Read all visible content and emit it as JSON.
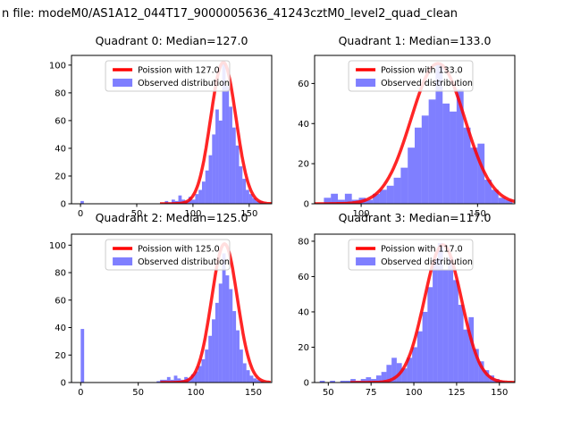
{
  "figure": {
    "title": "n file: modeM0/AS1A12_044T17_9000005636_41243cztM0_level2_quad_clean",
    "colors": {
      "curve": "#ff0000",
      "bars": "rgba(0,0,255,0.5)",
      "axes": "#000000"
    }
  },
  "chart_data": [
    {
      "type": "histogram",
      "title": "Quadrant 0: Median=127.0",
      "legend": [
        "Poission with 127.0",
        "Observed distribution"
      ],
      "poisson": {
        "lambda": 127.0,
        "peak": 102
      },
      "hist": {
        "bin_start": 0,
        "bin_width": 3,
        "counts": [
          2,
          0,
          0,
          0,
          0,
          0,
          0,
          0,
          0,
          0,
          0,
          0,
          0,
          0,
          0,
          0,
          0,
          0,
          0,
          0,
          0,
          0,
          0,
          0,
          0,
          2,
          1,
          3,
          2,
          6,
          3,
          2,
          5,
          3,
          7,
          10,
          16,
          24,
          35,
          50,
          68,
          60,
          101,
          85,
          70,
          55,
          42,
          27,
          18,
          10,
          7,
          4,
          2,
          2,
          1
        ]
      },
      "xticks": [
        0,
        50,
        100,
        150
      ],
      "yticks": [
        0,
        20,
        40,
        60,
        80,
        100
      ],
      "xlim": [
        -8,
        170
      ],
      "ylim": [
        0,
        107
      ]
    },
    {
      "type": "histogram",
      "title": "Quadrant 1: Median=133.0",
      "legend": [
        "Poission with 133.0",
        "Observed distribution"
      ],
      "poisson": {
        "lambda": 133.0,
        "peak": 70
      },
      "hist": {
        "bin_start": 84,
        "bin_width": 3,
        "counts": [
          3,
          5,
          2,
          5,
          2,
          3,
          2,
          5,
          7,
          9,
          13,
          18,
          28,
          38,
          44,
          52,
          70,
          50,
          46,
          57,
          38,
          28,
          30,
          12,
          7,
          3,
          2
        ]
      },
      "xticks": [
        100,
        150
      ],
      "yticks": [
        0,
        20,
        40,
        60
      ],
      "xlim": [
        80,
        166
      ],
      "ylim": [
        0,
        74
      ]
    },
    {
      "type": "histogram",
      "title": "Quadrant 2: Median=125.0",
      "legend": [
        "Poission with 125.0",
        "Observed distribution"
      ],
      "poisson": {
        "lambda": 125.0,
        "peak": 101
      },
      "hist": {
        "bin_start": 0,
        "bin_width": 3,
        "counts": [
          39,
          0,
          0,
          0,
          0,
          0,
          0,
          0,
          0,
          0,
          0,
          0,
          0,
          0,
          0,
          0,
          0,
          0,
          0,
          0,
          0,
          0,
          1,
          2,
          2,
          4,
          2,
          5,
          3,
          2,
          4,
          3,
          6,
          8,
          12,
          17,
          24,
          34,
          46,
          58,
          72,
          94,
          78,
          68,
          52,
          38,
          24,
          14,
          9,
          5,
          3,
          2,
          1
        ]
      },
      "xticks": [
        0,
        50,
        100,
        150
      ],
      "yticks": [
        0,
        20,
        40,
        60,
        80,
        100
      ],
      "xlim": [
        -8,
        166
      ],
      "ylim": [
        0,
        108
      ]
    },
    {
      "type": "histogram",
      "title": "Quadrant 3: Median=117.0",
      "legend": [
        "Poission with 117.0",
        "Observed distribution"
      ],
      "poisson": {
        "lambda": 117.0,
        "peak": 78
      },
      "hist": {
        "bin_start": 45,
        "bin_width": 3,
        "counts": [
          1,
          0,
          1,
          0,
          1,
          1,
          2,
          1,
          2,
          3,
          2,
          4,
          6,
          10,
          14,
          11,
          8,
          14,
          20,
          29,
          40,
          54,
          70,
          79,
          64,
          71,
          58,
          44,
          30,
          37,
          19,
          12,
          7,
          4,
          2,
          1
        ]
      },
      "xticks": [
        50,
        75,
        100,
        125,
        150
      ],
      "yticks": [
        0,
        20,
        40,
        60,
        80
      ],
      "xlim": [
        42,
        159
      ],
      "ylim": [
        0,
        84
      ]
    }
  ]
}
